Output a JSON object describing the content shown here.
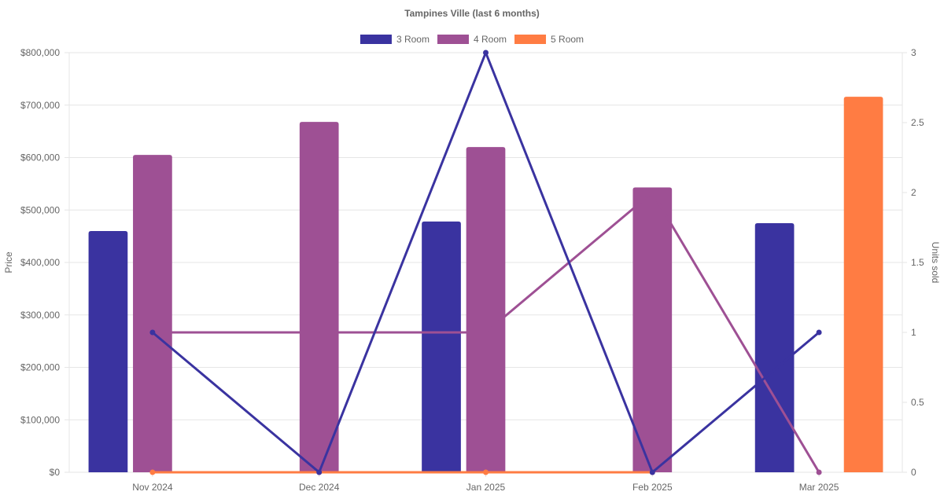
{
  "chart_data": {
    "type": "bar",
    "title": "Tampines Ville (last 6 months)",
    "categories": [
      "Nov 2024",
      "Dec 2024",
      "Jan 2025",
      "Feb 2025",
      "Mar 2025"
    ],
    "y_left": {
      "label": "Price",
      "range": [
        0,
        800000
      ],
      "ticks": [
        0,
        100000,
        200000,
        300000,
        400000,
        500000,
        600000,
        700000,
        800000
      ],
      "tick_labels": [
        "$0",
        "$100,000",
        "$200,000",
        "$300,000",
        "$400,000",
        "$500,000",
        "$600,000",
        "$700,000",
        "$800,000"
      ]
    },
    "y_right": {
      "label": "Units sold",
      "range": [
        0,
        3
      ],
      "ticks": [
        0,
        0.5,
        1,
        1.5,
        2,
        2.5,
        3
      ],
      "tick_labels": [
        "0",
        "0.5",
        "1",
        "1.5",
        "2",
        "2.5",
        "3"
      ]
    },
    "grid": true,
    "legend_position": "top",
    "series": [
      {
        "name": "3 Room",
        "color": "#3a33a0",
        "price": [
          460000,
          null,
          478000,
          null,
          475000
        ],
        "units": [
          1,
          0,
          3,
          0,
          1
        ]
      },
      {
        "name": "4 Room",
        "color": "#9e5094",
        "price": [
          605000,
          668000,
          620000,
          543000,
          null
        ],
        "units": [
          1,
          1,
          1,
          2,
          0
        ]
      },
      {
        "name": "5 Room",
        "color": "#ff7c43",
        "price": [
          null,
          null,
          null,
          null,
          716000
        ],
        "units": [
          0,
          0,
          0,
          0,
          null
        ]
      }
    ]
  }
}
